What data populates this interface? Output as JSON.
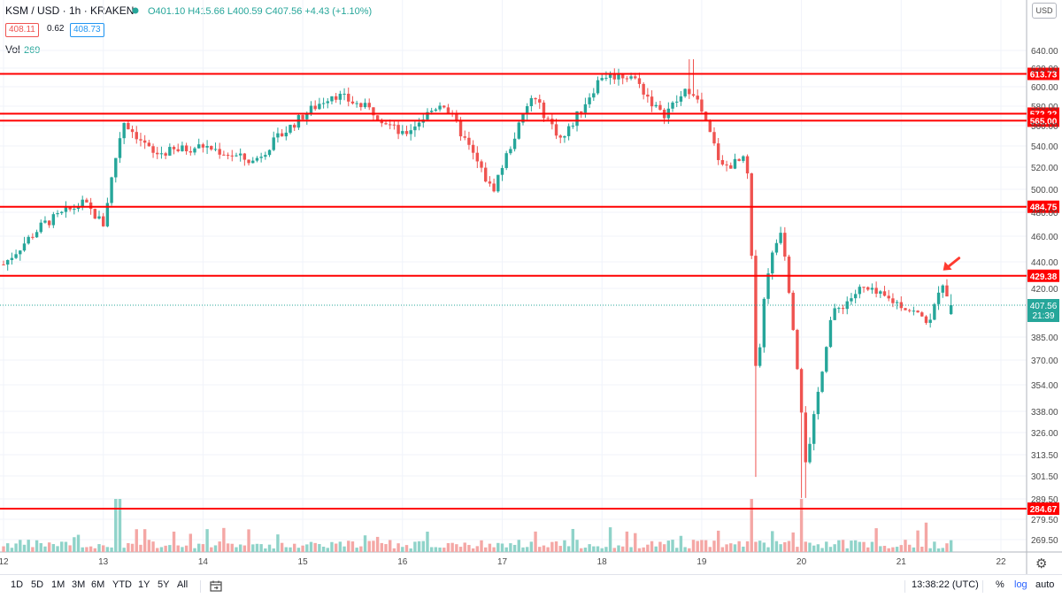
{
  "header": {
    "symbol": "KSM / USD · 1h · KRAKEN",
    "ohlc": "O401.10 H415.66 L400.59 C407.56 +4.43 (+1.10%)",
    "bid": "408.11",
    "spread": "0.62",
    "ask": "408.73",
    "volume_label": "Vol",
    "volume_value": "269"
  },
  "price_axis": {
    "currency_button": "USD",
    "scale": "log",
    "ticks": [
      640,
      620,
      600,
      580,
      560,
      540,
      520,
      500,
      480,
      460,
      440,
      420,
      385,
      370,
      354,
      338,
      326,
      313.5,
      301.5,
      289.5,
      279.5,
      269.5
    ],
    "tick_labels": [
      "640.00",
      "620.00",
      "600.00",
      "580.00",
      "560.00",
      "540.00",
      "520.00",
      "500.00",
      "480.00",
      "460.00",
      "440.00",
      "420.00",
      "385.00",
      "370.00",
      "354.00",
      "338.00",
      "326.00",
      "313.50",
      "301.50",
      "289.50",
      "279.50",
      "269.50"
    ]
  },
  "time_axis": {
    "labels": [
      "12",
      "13",
      "14",
      "15",
      "16",
      "17",
      "18",
      "19",
      "20",
      "21",
      "22"
    ]
  },
  "current_price": {
    "value": 407.56,
    "label": "407.56",
    "countdown": "21:39"
  },
  "colors": {
    "up": "#26a69a",
    "down": "#ef5350",
    "level": "#ff0000",
    "vol_up": "#8fd3c9",
    "vol_down": "#f4a7a5",
    "arrow": "#ff3b30"
  },
  "toolbar": {
    "timeframes": [
      "1D",
      "5D",
      "1M",
      "3M",
      "6M",
      "YTD",
      "1Y",
      "5Y",
      "All"
    ],
    "calendar_icon": "calendar-range-icon",
    "clock": "13:38:22 (UTC)",
    "percent": "%",
    "log": "log",
    "auto": "auto",
    "settings_icon": "gear-icon"
  },
  "chart_data": {
    "type": "candlestick",
    "symbol": "KSM / USD",
    "interval": "1h",
    "exchange": "KRAKEN",
    "ylim": [
      265,
      650
    ],
    "y_scale": "log",
    "horizontal_levels": [
      613.73,
      572.22,
      565.0,
      484.75,
      429.38,
      284.67
    ],
    "horizontal_level_labels": [
      "613.73",
      "572.22",
      "565.00",
      "484.75",
      "429.38",
      "284.67"
    ],
    "annotations": [
      {
        "type": "arrow",
        "target_price": 429.38,
        "note": "red arrow pointing at rejection from 429.38"
      }
    ],
    "last_candle": {
      "open": 401.1,
      "high": 415.66,
      "low": 400.59,
      "close": 407.56,
      "change": 4.43,
      "change_pct": 1.1
    },
    "series_path": [
      {
        "day": 12,
        "price": 438
      },
      {
        "day": 12.4,
        "price": 470
      },
      {
        "day": 12.8,
        "price": 488
      },
      {
        "day": 13.0,
        "price": 470
      },
      {
        "day": 13.2,
        "price": 565
      },
      {
        "day": 13.5,
        "price": 532
      },
      {
        "day": 14.0,
        "price": 540
      },
      {
        "day": 14.5,
        "price": 525
      },
      {
        "day": 15.0,
        "price": 570
      },
      {
        "day": 15.3,
        "price": 593
      },
      {
        "day": 15.7,
        "price": 575
      },
      {
        "day": 16.0,
        "price": 550
      },
      {
        "day": 16.4,
        "price": 585
      },
      {
        "day": 16.9,
        "price": 498
      },
      {
        "day": 17.3,
        "price": 590
      },
      {
        "day": 17.6,
        "price": 545
      },
      {
        "day": 18.0,
        "price": 612
      },
      {
        "day": 18.3,
        "price": 612
      },
      {
        "day": 18.6,
        "price": 570
      },
      {
        "day": 18.9,
        "price": 600
      },
      {
        "day": 19.2,
        "price": 520
      },
      {
        "day": 19.45,
        "price": 527
      },
      {
        "day": 19.55,
        "price": 355
      },
      {
        "day": 19.65,
        "price": 430
      },
      {
        "day": 19.8,
        "price": 468
      },
      {
        "day": 20.0,
        "price": 340
      },
      {
        "day": 20.05,
        "price": 305
      },
      {
        "day": 20.3,
        "price": 400
      },
      {
        "day": 20.6,
        "price": 420
      },
      {
        "day": 21.0,
        "price": 408
      },
      {
        "day": 21.3,
        "price": 395
      },
      {
        "day": 21.4,
        "price": 428
      },
      {
        "day": 21.5,
        "price": 407.56
      }
    ],
    "volume_spikes": [
      {
        "day": 13.15,
        "value": "high"
      },
      {
        "day": 19.5,
        "value": "high"
      },
      {
        "day": 20.0,
        "value": "high"
      }
    ]
  }
}
